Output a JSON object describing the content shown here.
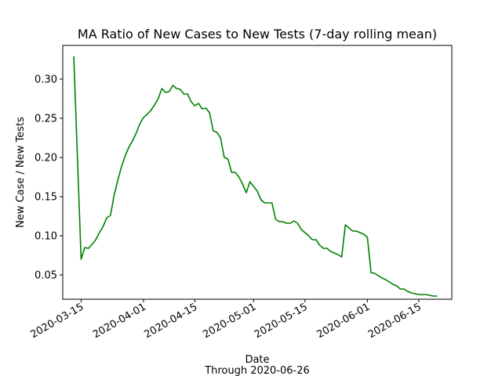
{
  "chart_data": {
    "type": "line",
    "title": "MA Ratio of New Cases to New Tests (7-day rolling mean)",
    "xlabel": "Date",
    "xlabel_sub": "Through 2020-06-26",
    "ylabel": "New Case / New Tests",
    "xlim": [
      "2020-03-10",
      "2020-06-24"
    ],
    "ylim": [
      0.019,
      0.343
    ],
    "x_ticks": [
      "2020-03-15",
      "2020-04-01",
      "2020-04-15",
      "2020-05-01",
      "2020-05-15",
      "2020-06-01",
      "2020-06-15"
    ],
    "y_ticks": [
      0.05,
      0.1,
      0.15,
      0.2,
      0.25,
      0.3
    ],
    "y_tick_labels": [
      "0.05",
      "0.10",
      "0.15",
      "0.20",
      "0.25",
      "0.30"
    ],
    "grid": false,
    "legend": "none",
    "series": [
      {
        "color": "#008000",
        "points": [
          [
            "2020-03-13",
            0.329
          ],
          [
            "2020-03-14",
            0.2
          ],
          [
            "2020-03-15",
            0.07
          ],
          [
            "2020-03-16",
            0.085
          ],
          [
            "2020-03-17",
            0.084
          ],
          [
            "2020-03-18",
            0.089
          ],
          [
            "2020-03-19",
            0.095
          ],
          [
            "2020-03-20",
            0.104
          ],
          [
            "2020-03-21",
            0.112
          ],
          [
            "2020-03-22",
            0.123
          ],
          [
            "2020-03-23",
            0.126
          ],
          [
            "2020-03-24",
            0.152
          ],
          [
            "2020-03-25",
            0.171
          ],
          [
            "2020-03-26",
            0.188
          ],
          [
            "2020-03-27",
            0.202
          ],
          [
            "2020-03-28",
            0.213
          ],
          [
            "2020-03-29",
            0.221
          ],
          [
            "2020-03-30",
            0.231
          ],
          [
            "2020-03-31",
            0.243
          ],
          [
            "2020-04-01",
            0.251
          ],
          [
            "2020-04-02",
            0.255
          ],
          [
            "2020-04-03",
            0.26
          ],
          [
            "2020-04-04",
            0.267
          ],
          [
            "2020-04-05",
            0.275
          ],
          [
            "2020-04-06",
            0.288
          ],
          [
            "2020-04-07",
            0.283
          ],
          [
            "2020-04-08",
            0.284
          ],
          [
            "2020-04-09",
            0.292
          ],
          [
            "2020-04-10",
            0.288
          ],
          [
            "2020-04-11",
            0.287
          ],
          [
            "2020-04-12",
            0.281
          ],
          [
            "2020-04-13",
            0.281
          ],
          [
            "2020-04-14",
            0.271
          ],
          [
            "2020-04-15",
            0.266
          ],
          [
            "2020-04-16",
            0.269
          ],
          [
            "2020-04-17",
            0.262
          ],
          [
            "2020-04-18",
            0.263
          ],
          [
            "2020-04-19",
            0.257
          ],
          [
            "2020-04-20",
            0.234
          ],
          [
            "2020-04-21",
            0.232
          ],
          [
            "2020-04-22",
            0.225
          ],
          [
            "2020-04-23",
            0.2
          ],
          [
            "2020-04-24",
            0.198
          ],
          [
            "2020-04-25",
            0.181
          ],
          [
            "2020-04-26",
            0.181
          ],
          [
            "2020-04-27",
            0.175
          ],
          [
            "2020-04-28",
            0.166
          ],
          [
            "2020-04-29",
            0.155
          ],
          [
            "2020-04-30",
            0.169
          ],
          [
            "2020-05-01",
            0.163
          ],
          [
            "2020-05-02",
            0.157
          ],
          [
            "2020-05-03",
            0.146
          ],
          [
            "2020-05-04",
            0.142
          ],
          [
            "2020-05-05",
            0.142
          ],
          [
            "2020-05-06",
            0.142
          ],
          [
            "2020-05-07",
            0.121
          ],
          [
            "2020-05-08",
            0.118
          ],
          [
            "2020-05-09",
            0.118
          ],
          [
            "2020-05-10",
            0.116
          ],
          [
            "2020-05-11",
            0.116
          ],
          [
            "2020-05-12",
            0.119
          ],
          [
            "2020-05-13",
            0.116
          ],
          [
            "2020-05-14",
            0.108
          ],
          [
            "2020-05-15",
            0.104
          ],
          [
            "2020-05-16",
            0.1
          ],
          [
            "2020-05-17",
            0.095
          ],
          [
            "2020-05-18",
            0.095
          ],
          [
            "2020-05-19",
            0.088
          ],
          [
            "2020-05-20",
            0.084
          ],
          [
            "2020-05-21",
            0.084
          ],
          [
            "2020-05-22",
            0.08
          ],
          [
            "2020-05-23",
            0.078
          ],
          [
            "2020-05-24",
            0.076
          ],
          [
            "2020-05-25",
            0.073
          ],
          [
            "2020-05-26",
            0.114
          ],
          [
            "2020-05-27",
            0.11
          ],
          [
            "2020-05-28",
            0.106
          ],
          [
            "2020-05-29",
            0.106
          ],
          [
            "2020-05-30",
            0.104
          ],
          [
            "2020-05-31",
            0.102
          ],
          [
            "2020-06-01",
            0.098
          ],
          [
            "2020-06-02",
            0.053
          ],
          [
            "2020-06-03",
            0.052
          ],
          [
            "2020-06-04",
            0.049
          ],
          [
            "2020-06-05",
            0.046
          ],
          [
            "2020-06-06",
            0.044
          ],
          [
            "2020-06-07",
            0.041
          ],
          [
            "2020-06-08",
            0.038
          ],
          [
            "2020-06-09",
            0.036
          ],
          [
            "2020-06-10",
            0.032
          ],
          [
            "2020-06-11",
            0.032
          ],
          [
            "2020-06-12",
            0.029
          ],
          [
            "2020-06-13",
            0.027
          ],
          [
            "2020-06-14",
            0.026
          ],
          [
            "2020-06-15",
            0.025
          ],
          [
            "2020-06-16",
            0.025
          ],
          [
            "2020-06-17",
            0.025
          ],
          [
            "2020-06-18",
            0.024
          ],
          [
            "2020-06-19",
            0.023
          ],
          [
            "2020-06-20",
            0.023
          ]
        ]
      }
    ]
  }
}
